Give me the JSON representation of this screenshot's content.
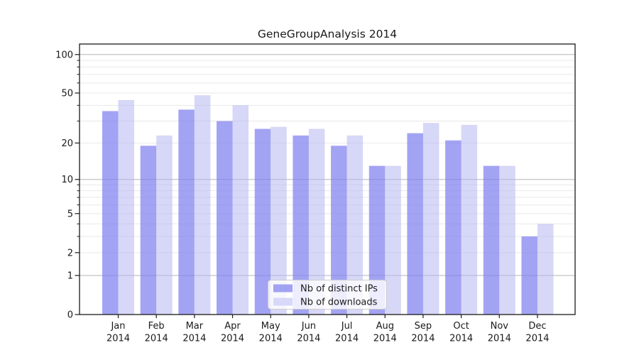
{
  "chart_data": {
    "type": "bar",
    "title": "GeneGroupAnalysis 2014",
    "categories": [
      "Jan",
      "Feb",
      "Mar",
      "Apr",
      "May",
      "Jun",
      "Jul",
      "Aug",
      "Sep",
      "Oct",
      "Nov",
      "Dec"
    ],
    "year_suffix": "2014",
    "series": [
      {
        "name": "Nb of distinct IPs",
        "values": [
          36,
          19,
          37,
          30,
          26,
          23,
          19,
          13,
          24,
          21,
          13,
          3
        ]
      },
      {
        "name": "Nb of downloads",
        "values": [
          44,
          23,
          48,
          40,
          27,
          26,
          23,
          13,
          29,
          28,
          13,
          4
        ]
      }
    ],
    "yscale": "log1p",
    "ylim": [
      0,
      120
    ],
    "y_tick_labels": [
      "100",
      "50",
      "20",
      "10",
      "5",
      "2",
      "1",
      "0"
    ],
    "y_tick_values": [
      100,
      50,
      20,
      10,
      5,
      2,
      1,
      0
    ],
    "y_major_gridlines": [
      1,
      10,
      100
    ],
    "y_minor_gridlines": [
      2,
      3,
      4,
      5,
      6,
      7,
      8,
      9,
      20,
      30,
      40,
      50,
      60,
      70,
      80,
      90
    ],
    "y_minor_unlabeled_ticks": [
      3,
      4,
      6,
      7,
      8,
      9,
      30,
      40,
      60,
      70,
      80,
      90
    ],
    "grid": true,
    "legend_position": "lower center"
  },
  "colors": {
    "series1_bar": "rgba(128,128,240,0.72)",
    "series2_bar": "rgba(176,176,240,0.5)",
    "series1_legend": "#a2a2f2",
    "series2_legend": "#d8d8f8",
    "grid_major": "#b6b6b6",
    "grid_minor": "#e9e9e9",
    "text": "#1a1a1a",
    "spine": "#1a1a1a",
    "legend_border": "#cccccc",
    "legend_bg": "rgba(255,255,255,0.8)"
  }
}
